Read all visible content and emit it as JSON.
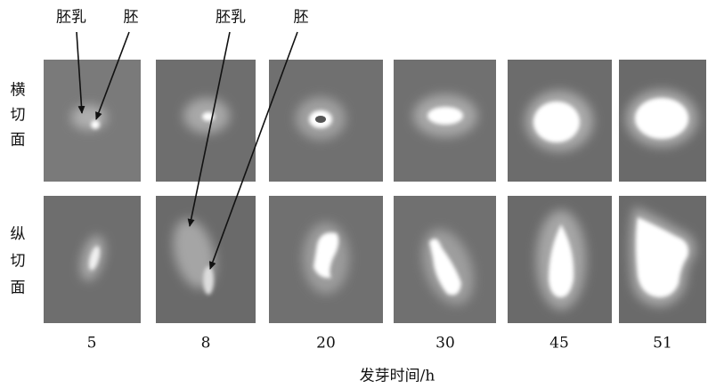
{
  "annotations": [
    "胚乳",
    "胚",
    "胚乳",
    "胚"
  ],
  "row_labels": [
    [
      "横",
      "切",
      "面"
    ],
    [
      "纵",
      "切",
      "面"
    ]
  ],
  "column_labels": [
    "5",
    "8",
    "20",
    "30",
    "45",
    "51"
  ],
  "axis_label": "发芽时间/h"
}
